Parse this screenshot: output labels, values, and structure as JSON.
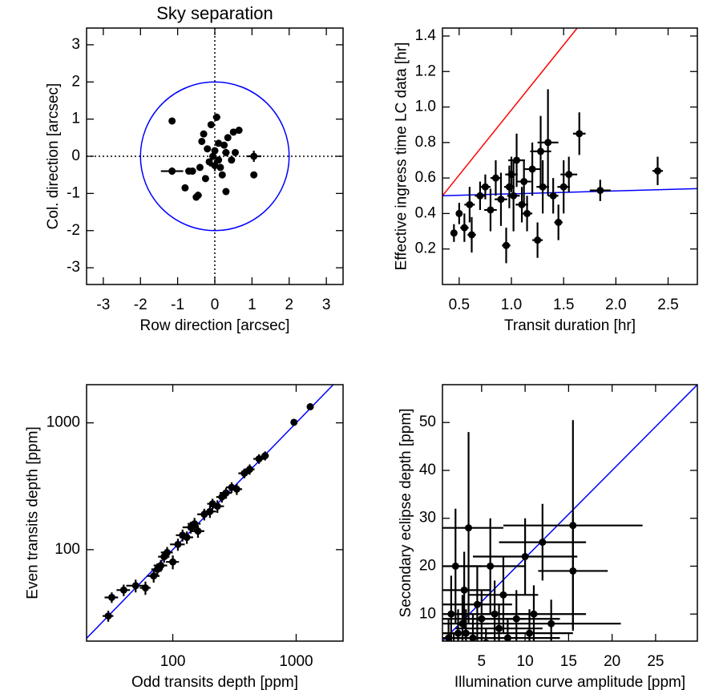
{
  "chart_data": [
    {
      "type": "scatter",
      "title": "Sky separation",
      "xlabel": "Row direction [arcsec]",
      "ylabel": "Col. direction [arcsec]",
      "xlim": [
        -3.45,
        3.45
      ],
      "ylim": [
        -3.45,
        3.45
      ],
      "xticks": [
        -3,
        -2,
        -1,
        0,
        1,
        2,
        3
      ],
      "yticks": [
        -3,
        -2,
        -1,
        0,
        1,
        2,
        3
      ],
      "crosshair": {
        "x": 0,
        "y": 0
      },
      "circle": {
        "center": [
          0,
          0
        ],
        "radius": 2,
        "color": "#0000ff"
      },
      "color": "#000000",
      "x": [
        -0.05,
        0.1,
        -0.2,
        0.3,
        0.15,
        -0.35,
        0.5,
        -0.6,
        0.05,
        -0.1,
        0.2,
        0.35,
        -0.4,
        0.65,
        -1.15,
        1.05,
        -0.8,
        -0.5,
        0.0,
        0.25,
        -0.15,
        0.45,
        -0.3,
        0.1,
        0.55,
        -0.25,
        1.05,
        -0.7,
        0.0,
        0.3,
        -1.15,
        -0.45
      ],
      "y": [
        0.0,
        -0.1,
        0.2,
        0.1,
        -0.3,
        0.4,
        0.65,
        -0.4,
        1.05,
        0.85,
        -0.5,
        0.5,
        -0.3,
        0.7,
        0.95,
        -0.5,
        -0.85,
        -1.1,
        -0.25,
        0.3,
        -0.15,
        -0.1,
        0.6,
        0.35,
        0.1,
        -0.6,
        0.0,
        -0.4,
        0.15,
        -0.95,
        -0.4,
        -1.05
      ],
      "xerr": [
        0.1,
        null,
        null,
        0.1,
        null,
        null,
        null,
        null,
        0.1,
        null,
        null,
        null,
        null,
        null,
        null,
        null,
        null,
        null,
        0.15,
        null,
        null,
        null,
        null,
        null,
        null,
        null,
        0.2,
        null,
        null,
        null,
        0.3,
        0.1
      ],
      "yerr": [
        0.1,
        null,
        null,
        0.1,
        null,
        null,
        null,
        null,
        0.1,
        null,
        null,
        null,
        null,
        null,
        null,
        null,
        null,
        null,
        0.15,
        null,
        null,
        null,
        null,
        null,
        null,
        null,
        0.15,
        null,
        null,
        null,
        0.1,
        0.1
      ]
    },
    {
      "type": "scatter",
      "xlabel": "Transit duration [hr]",
      "ylabel": "Effective ingress time LC data [hr]",
      "xlim": [
        0.34,
        2.78
      ],
      "ylim": [
        0,
        1.445
      ],
      "xticks": [
        0.5,
        {
          "value": 1,
          "label": "1.0"
        },
        1.5,
        {
          "value": 2,
          "label": "2.0"
        },
        2.5
      ],
      "yticks": [
        0.2,
        0.4,
        0.6,
        0.8,
        {
          "value": 1,
          "label": "1.0"
        },
        1.2,
        1.4
      ],
      "color": "#000000",
      "lines": [
        {
          "color": "#ff0000",
          "x": [
            0.34,
            1.63
          ],
          "y": [
            0.5,
            1.445
          ]
        },
        {
          "color": "#0000ff",
          "x": [
            0.34,
            2.78
          ],
          "y": [
            0.5,
            0.54
          ]
        }
      ],
      "x": [
        0.45,
        0.5,
        0.55,
        0.6,
        0.62,
        0.7,
        0.75,
        0.8,
        0.85,
        0.9,
        0.95,
        0.98,
        1.0,
        1.02,
        1.05,
        1.1,
        1.12,
        1.15,
        1.2,
        1.25,
        1.28,
        1.3,
        1.35,
        1.4,
        1.45,
        1.5,
        1.55,
        1.65,
        1.85,
        2.4
      ],
      "y": [
        0.29,
        0.4,
        0.32,
        0.45,
        0.28,
        0.5,
        0.55,
        0.42,
        0.6,
        0.48,
        0.22,
        0.55,
        0.62,
        0.5,
        0.7,
        0.45,
        0.58,
        0.4,
        0.65,
        0.25,
        0.75,
        0.55,
        0.8,
        0.5,
        0.35,
        0.55,
        0.62,
        0.85,
        0.53,
        0.64
      ],
      "xerr": [
        0.03,
        0.03,
        0.04,
        0.05,
        0.04,
        0.05,
        0.05,
        0.06,
        0.05,
        0.06,
        0.04,
        0.05,
        0.06,
        0.06,
        0.08,
        0.06,
        0.07,
        0.05,
        0.08,
        0.05,
        0.1,
        0.06,
        0.1,
        0.05,
        0.04,
        0.06,
        0.08,
        0.06,
        0.1,
        0.05
      ],
      "yerr": [
        0.05,
        0.06,
        0.08,
        0.1,
        0.1,
        0.08,
        0.07,
        0.12,
        0.1,
        0.15,
        0.1,
        0.12,
        0.1,
        0.2,
        0.15,
        0.1,
        0.12,
        0.1,
        0.15,
        0.1,
        0.2,
        0.15,
        0.3,
        0.1,
        0.1,
        0.15,
        0.1,
        0.12,
        0.06,
        0.08
      ]
    },
    {
      "type": "scatter",
      "xlabel": "Odd transits depth [ppm]",
      "ylabel": "Even transits depth [ppm]",
      "xscale": "log",
      "yscale": "log",
      "xlim": [
        20,
        2400
      ],
      "ylim": [
        19,
        2000
      ],
      "xticks": [
        100,
        1000
      ],
      "yticks": [
        100,
        1000
      ],
      "color": "#000000",
      "lines": [
        {
          "color": "#0000ff",
          "x": [
            20,
            2000
          ],
          "y": [
            20,
            2000
          ]
        }
      ],
      "x": [
        30,
        32,
        40,
        50,
        60,
        70,
        75,
        80,
        85,
        90,
        100,
        110,
        120,
        130,
        140,
        150,
        160,
        180,
        200,
        210,
        230,
        250,
        270,
        300,
        330,
        380,
        420,
        500,
        560,
        960,
        1300
      ],
      "y": [
        30,
        42,
        48,
        52,
        50,
        62,
        70,
        75,
        88,
        95,
        80,
        110,
        130,
        125,
        150,
        160,
        140,
        190,
        200,
        230,
        220,
        260,
        280,
        310,
        300,
        400,
        430,
        520,
        550,
        1010,
        1340
      ],
      "xerr": [
        3,
        4,
        5,
        8,
        6,
        8,
        8,
        10,
        9,
        10,
        12,
        15,
        14,
        16,
        20,
        18,
        20,
        22,
        25,
        20,
        30,
        25,
        30,
        30,
        35,
        40,
        40,
        50,
        40,
        null,
        null
      ],
      "yerr": [
        3,
        4,
        5,
        6,
        6,
        7,
        8,
        8,
        9,
        10,
        10,
        12,
        14,
        14,
        16,
        18,
        16,
        20,
        22,
        22,
        25,
        25,
        28,
        30,
        30,
        35,
        40,
        45,
        45,
        null,
        null
      ]
    },
    {
      "type": "scatter",
      "xlabel": "Illumination curve amplitude [ppm]",
      "ylabel": "Secondary eclipse depth [ppm]",
      "xlim": [
        0.5,
        29.8
      ],
      "ylim": [
        4.35,
        57.9
      ],
      "xticks": [
        5,
        10,
        15,
        20,
        25
      ],
      "yticks": [
        10,
        20,
        30,
        40,
        50
      ],
      "color": "#000000",
      "lines": [
        {
          "color": "#0000ff",
          "x": [
            0.5,
            29.8
          ],
          "y": [
            4.35,
            57.9
          ]
        }
      ],
      "x": [
        1.2,
        1.5,
        2,
        2.3,
        2.8,
        3,
        3.5,
        4,
        4.5,
        5,
        5.5,
        6,
        6.5,
        7,
        7.5,
        8,
        9,
        10,
        10.5,
        11,
        12,
        13,
        15.5,
        15.5,
        3.2,
        1.8
      ],
      "y": [
        5,
        10,
        20,
        6,
        8,
        15,
        28,
        5,
        12,
        9,
        4,
        20,
        10,
        7,
        14,
        5,
        9,
        22,
        6,
        10,
        25,
        8,
        19,
        28.5,
        6,
        3
      ],
      "xerr": [
        1.5,
        2,
        3,
        2,
        3,
        3,
        4,
        3,
        4,
        5,
        4,
        4,
        5,
        5,
        4,
        6,
        5,
        6,
        5,
        6,
        5,
        8,
        4,
        8,
        3,
        2
      ],
      "yerr": [
        4,
        8,
        12,
        5,
        6,
        8,
        20,
        5,
        8,
        6,
        3,
        10,
        7,
        5,
        8,
        4,
        6,
        8,
        5,
        6,
        8,
        5,
        12,
        22,
        5,
        3
      ]
    }
  ]
}
